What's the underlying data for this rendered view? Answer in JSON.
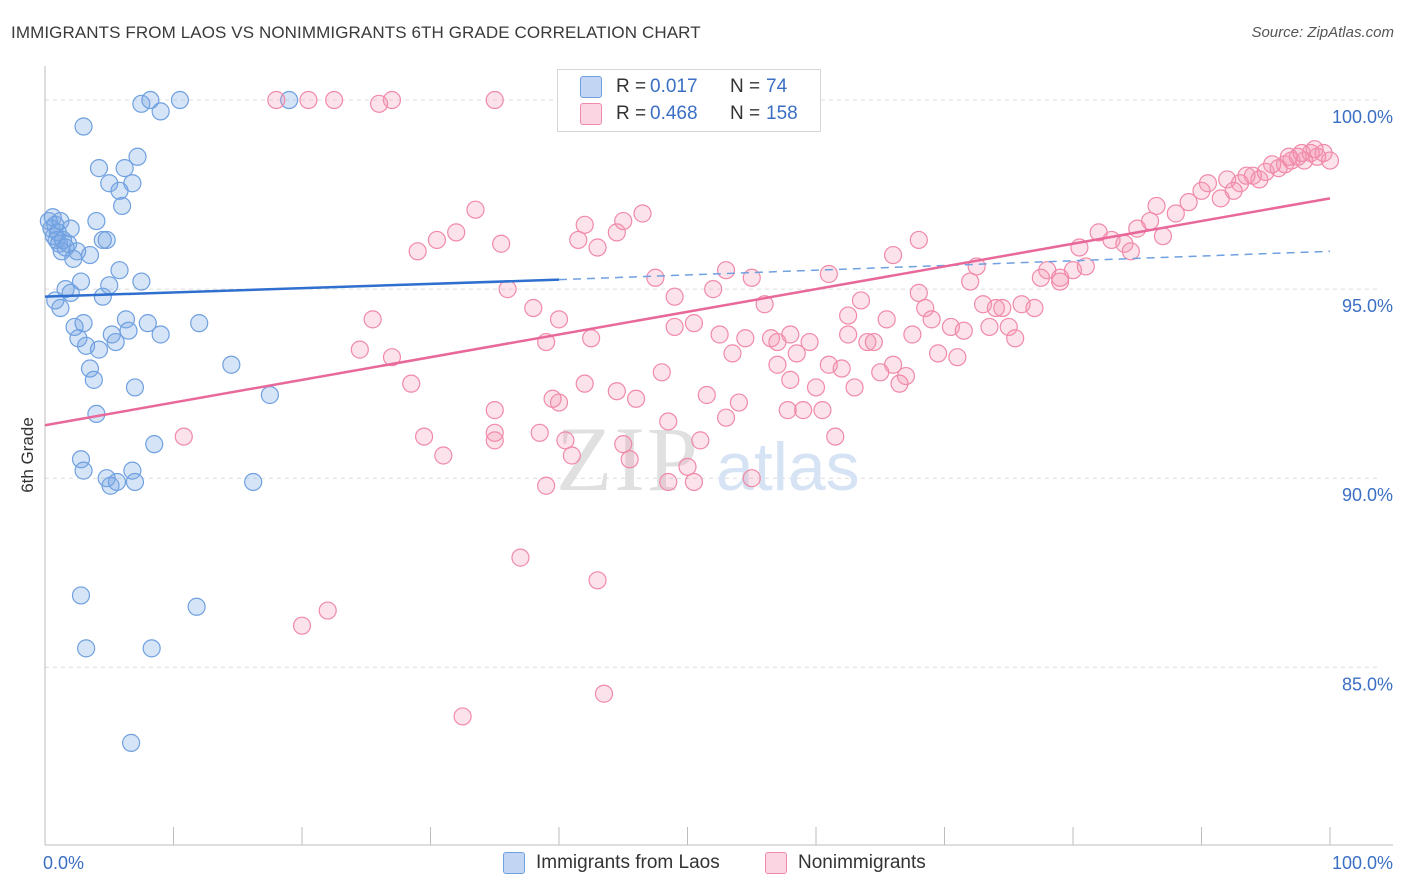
{
  "header": {
    "title": "IMMIGRANTS FROM LAOS VS NONIMMIGRANTS 6TH GRADE CORRELATION CHART",
    "source": "Source: ZipAtlas.com"
  },
  "legend": {
    "rows": [
      {
        "r_label": "R =",
        "r_value": "0.017",
        "n_label": "N =",
        "n_value": "74",
        "color": "#6fa0e0"
      },
      {
        "r_label": "R =",
        "r_value": "0.468",
        "n_label": "N =",
        "n_value": "158",
        "color": "#f08aa8"
      }
    ]
  },
  "bottom_legend": {
    "items": [
      {
        "label": "Immigrants from Laos",
        "color": "#6fa0e0"
      },
      {
        "label": "Nonimmigrants",
        "color": "#f08aa8"
      }
    ]
  },
  "watermark": {
    "zip": "ZIP",
    "atlas": "atlas"
  },
  "chart_data": {
    "type": "scatter",
    "title": "IMMIGRANTS FROM LAOS VS NONIMMIGRANTS 6TH GRADE CORRELATION CHART",
    "xlabel": "",
    "ylabel": "6th Grade",
    "xlim": [
      0,
      100
    ],
    "ylim": [
      80.3,
      100.9
    ],
    "x_tick_labels": [
      "0.0%",
      "100.0%"
    ],
    "y_ticks": [
      100.0,
      95.0,
      90.0,
      85.0
    ],
    "y_tick_labels": [
      "100.0%",
      "95.0%",
      "90.0%",
      "85.0%"
    ],
    "grid": true,
    "series": [
      {
        "name": "Immigrants from Laos",
        "color": "#6fa0e0",
        "trend": {
          "x0": 0,
          "y0": 94.8,
          "x1": 40,
          "y1": 95.25,
          "dash_to_x": 100,
          "dash_to_y": 96.0
        },
        "points": [
          [
            0.3,
            96.8
          ],
          [
            0.5,
            96.6
          ],
          [
            0.6,
            96.9
          ],
          [
            0.7,
            96.4
          ],
          [
            0.8,
            96.7
          ],
          [
            0.9,
            96.3
          ],
          [
            1.0,
            96.5
          ],
          [
            1.1,
            96.2
          ],
          [
            1.2,
            96.8
          ],
          [
            1.3,
            96.0
          ],
          [
            1.4,
            96.3
          ],
          [
            1.6,
            96.1
          ],
          [
            1.8,
            96.2
          ],
          [
            2.0,
            96.6
          ],
          [
            2.2,
            95.8
          ],
          [
            2.5,
            96.0
          ],
          [
            0.8,
            94.7
          ],
          [
            1.2,
            94.5
          ],
          [
            1.6,
            95.0
          ],
          [
            2.0,
            94.9
          ],
          [
            2.3,
            94.0
          ],
          [
            2.6,
            93.7
          ],
          [
            2.8,
            95.2
          ],
          [
            3.0,
            94.1
          ],
          [
            3.2,
            93.5
          ],
          [
            3.5,
            92.9
          ],
          [
            3.8,
            92.6
          ],
          [
            4.0,
            91.7
          ],
          [
            4.2,
            93.4
          ],
          [
            4.5,
            94.8
          ],
          [
            4.8,
            96.3
          ],
          [
            5.0,
            95.1
          ],
          [
            5.2,
            93.8
          ],
          [
            5.5,
            93.6
          ],
          [
            5.8,
            95.5
          ],
          [
            6.0,
            97.2
          ],
          [
            6.3,
            94.2
          ],
          [
            6.5,
            93.9
          ],
          [
            7.0,
            92.4
          ],
          [
            7.2,
            98.5
          ],
          [
            7.5,
            95.2
          ],
          [
            8.0,
            94.1
          ],
          [
            8.5,
            90.9
          ],
          [
            9.0,
            93.8
          ],
          [
            3.0,
            99.3
          ],
          [
            4.2,
            98.2
          ],
          [
            5.0,
            97.8
          ],
          [
            5.8,
            97.6
          ],
          [
            6.2,
            98.2
          ],
          [
            6.8,
            97.8
          ],
          [
            3.5,
            95.9
          ],
          [
            4.0,
            96.8
          ],
          [
            4.5,
            96.3
          ],
          [
            4.8,
            90.0
          ],
          [
            5.1,
            89.8
          ],
          [
            5.6,
            89.9
          ],
          [
            6.8,
            90.2
          ],
          [
            7.0,
            89.9
          ],
          [
            2.8,
            90.5
          ],
          [
            3.0,
            90.2
          ],
          [
            2.8,
            86.9
          ],
          [
            3.2,
            85.5
          ],
          [
            8.3,
            85.5
          ],
          [
            11.8,
            86.6
          ],
          [
            6.7,
            83.0
          ],
          [
            12.0,
            94.1
          ],
          [
            14.5,
            93.0
          ],
          [
            16.2,
            89.9
          ],
          [
            17.5,
            92.2
          ],
          [
            7.5,
            99.9
          ],
          [
            8.2,
            100.0
          ],
          [
            9.0,
            99.7
          ],
          [
            10.5,
            100.0
          ],
          [
            19.0,
            100.0
          ]
        ]
      },
      {
        "name": "Nonimmigrants",
        "color": "#f08aa8",
        "trend": {
          "x0": 0,
          "y0": 91.4,
          "x1": 100,
          "y1": 97.4
        },
        "points": [
          [
            10.8,
            91.1
          ],
          [
            18.0,
            100.0
          ],
          [
            20.5,
            100.0
          ],
          [
            22.5,
            100.0
          ],
          [
            27.0,
            100.0
          ],
          [
            35.0,
            100.0
          ],
          [
            26.0,
            99.9
          ],
          [
            24.5,
            93.4
          ],
          [
            25.5,
            94.2
          ],
          [
            27.0,
            93.2
          ],
          [
            28.5,
            92.5
          ],
          [
            29.0,
            96.0
          ],
          [
            30.5,
            96.3
          ],
          [
            32.0,
            96.5
          ],
          [
            33.5,
            97.1
          ],
          [
            35.5,
            96.2
          ],
          [
            36.0,
            95.0
          ],
          [
            38.0,
            94.5
          ],
          [
            39.0,
            93.6
          ],
          [
            40.0,
            94.2
          ],
          [
            41.5,
            96.3
          ],
          [
            42.0,
            96.7
          ],
          [
            42.5,
            93.7
          ],
          [
            43.0,
            96.1
          ],
          [
            44.5,
            96.5
          ],
          [
            45.0,
            96.8
          ],
          [
            46.5,
            97.0
          ],
          [
            47.5,
            95.3
          ],
          [
            48.0,
            92.8
          ],
          [
            49.0,
            94.0
          ],
          [
            50.5,
            94.1
          ],
          [
            51.0,
            91.0
          ],
          [
            52.0,
            95.0
          ],
          [
            53.0,
            95.5
          ],
          [
            53.5,
            93.3
          ],
          [
            54.5,
            93.7
          ],
          [
            55.0,
            95.3
          ],
          [
            56.0,
            94.6
          ],
          [
            56.5,
            93.7
          ],
          [
            57.0,
            93.0
          ],
          [
            58.0,
            93.8
          ],
          [
            58.5,
            93.3
          ],
          [
            59.5,
            93.6
          ],
          [
            60.0,
            92.4
          ],
          [
            61.0,
            93.0
          ],
          [
            62.0,
            92.9
          ],
          [
            62.5,
            94.3
          ],
          [
            63.5,
            94.7
          ],
          [
            64.0,
            93.6
          ],
          [
            65.5,
            94.2
          ],
          [
            66.0,
            93.0
          ],
          [
            67.0,
            92.7
          ],
          [
            68.0,
            94.9
          ],
          [
            68.5,
            94.5
          ],
          [
            69.5,
            93.3
          ],
          [
            70.5,
            94.0
          ],
          [
            71.5,
            93.9
          ],
          [
            72.0,
            95.2
          ],
          [
            73.0,
            94.6
          ],
          [
            73.5,
            94.0
          ],
          [
            74.5,
            94.5
          ],
          [
            75.0,
            94.0
          ],
          [
            76.0,
            94.6
          ],
          [
            77.0,
            94.5
          ],
          [
            78.0,
            95.5
          ],
          [
            79.0,
            95.3
          ],
          [
            80.0,
            95.5
          ],
          [
            80.5,
            96.1
          ],
          [
            81.0,
            95.6
          ],
          [
            82.0,
            96.5
          ],
          [
            83.0,
            96.3
          ],
          [
            84.0,
            96.2
          ],
          [
            84.5,
            96.0
          ],
          [
            85.0,
            96.6
          ],
          [
            86.0,
            96.8
          ],
          [
            86.5,
            97.2
          ],
          [
            87.0,
            96.4
          ],
          [
            88.0,
            97.0
          ],
          [
            89.0,
            97.3
          ],
          [
            90.0,
            97.6
          ],
          [
            90.5,
            97.8
          ],
          [
            91.5,
            97.4
          ],
          [
            92.0,
            97.9
          ],
          [
            93.0,
            97.8
          ],
          [
            94.0,
            98.0
          ],
          [
            94.5,
            97.9
          ],
          [
            95.0,
            98.1
          ],
          [
            96.0,
            98.2
          ],
          [
            96.5,
            98.3
          ],
          [
            97.0,
            98.4
          ],
          [
            97.5,
            98.5
          ],
          [
            98.0,
            98.4
          ],
          [
            98.5,
            98.6
          ],
          [
            99.0,
            98.5
          ],
          [
            99.5,
            98.6
          ],
          [
            100.0,
            98.4
          ],
          [
            92.5,
            97.6
          ],
          [
            93.5,
            98.0
          ],
          [
            95.5,
            98.3
          ],
          [
            96.8,
            98.5
          ],
          [
            97.8,
            98.6
          ],
          [
            98.8,
            98.7
          ],
          [
            64.5,
            93.6
          ],
          [
            66.5,
            92.5
          ],
          [
            71.0,
            93.2
          ],
          [
            60.5,
            91.8
          ],
          [
            57.8,
            91.8
          ],
          [
            55.0,
            90.0
          ],
          [
            50.0,
            90.3
          ],
          [
            45.5,
            90.5
          ],
          [
            41.0,
            90.6
          ],
          [
            35.0,
            91.0
          ],
          [
            38.5,
            91.2
          ],
          [
            40.0,
            92.0
          ],
          [
            42.0,
            92.5
          ],
          [
            44.5,
            92.3
          ],
          [
            46.0,
            92.1
          ],
          [
            48.5,
            91.5
          ],
          [
            51.5,
            92.2
          ],
          [
            53.0,
            91.6
          ],
          [
            54.0,
            92.0
          ],
          [
            58.0,
            92.6
          ],
          [
            59.0,
            91.8
          ],
          [
            61.5,
            91.1
          ],
          [
            63.0,
            92.4
          ],
          [
            65.0,
            92.8
          ],
          [
            39.0,
            89.8
          ],
          [
            37.0,
            87.9
          ],
          [
            43.0,
            87.3
          ],
          [
            35.0,
            91.2
          ],
          [
            39.5,
            92.1
          ],
          [
            20.0,
            86.1
          ],
          [
            22.0,
            86.5
          ],
          [
            32.5,
            83.7
          ],
          [
            43.5,
            84.3
          ],
          [
            29.5,
            91.1
          ],
          [
            31.0,
            90.6
          ],
          [
            35.0,
            91.8
          ],
          [
            40.5,
            91.0
          ],
          [
            45.0,
            90.9
          ],
          [
            48.5,
            89.9
          ],
          [
            50.5,
            89.9
          ],
          [
            52.5,
            93.8
          ],
          [
            49.0,
            94.8
          ],
          [
            57.0,
            93.6
          ],
          [
            62.5,
            93.8
          ],
          [
            67.5,
            93.8
          ],
          [
            69.0,
            94.2
          ],
          [
            74.0,
            94.5
          ],
          [
            75.5,
            93.7
          ],
          [
            77.5,
            95.3
          ],
          [
            79.0,
            95.2
          ],
          [
            72.5,
            95.6
          ],
          [
            68.0,
            96.3
          ],
          [
            66.0,
            95.9
          ],
          [
            61.0,
            95.4
          ]
        ]
      }
    ]
  }
}
